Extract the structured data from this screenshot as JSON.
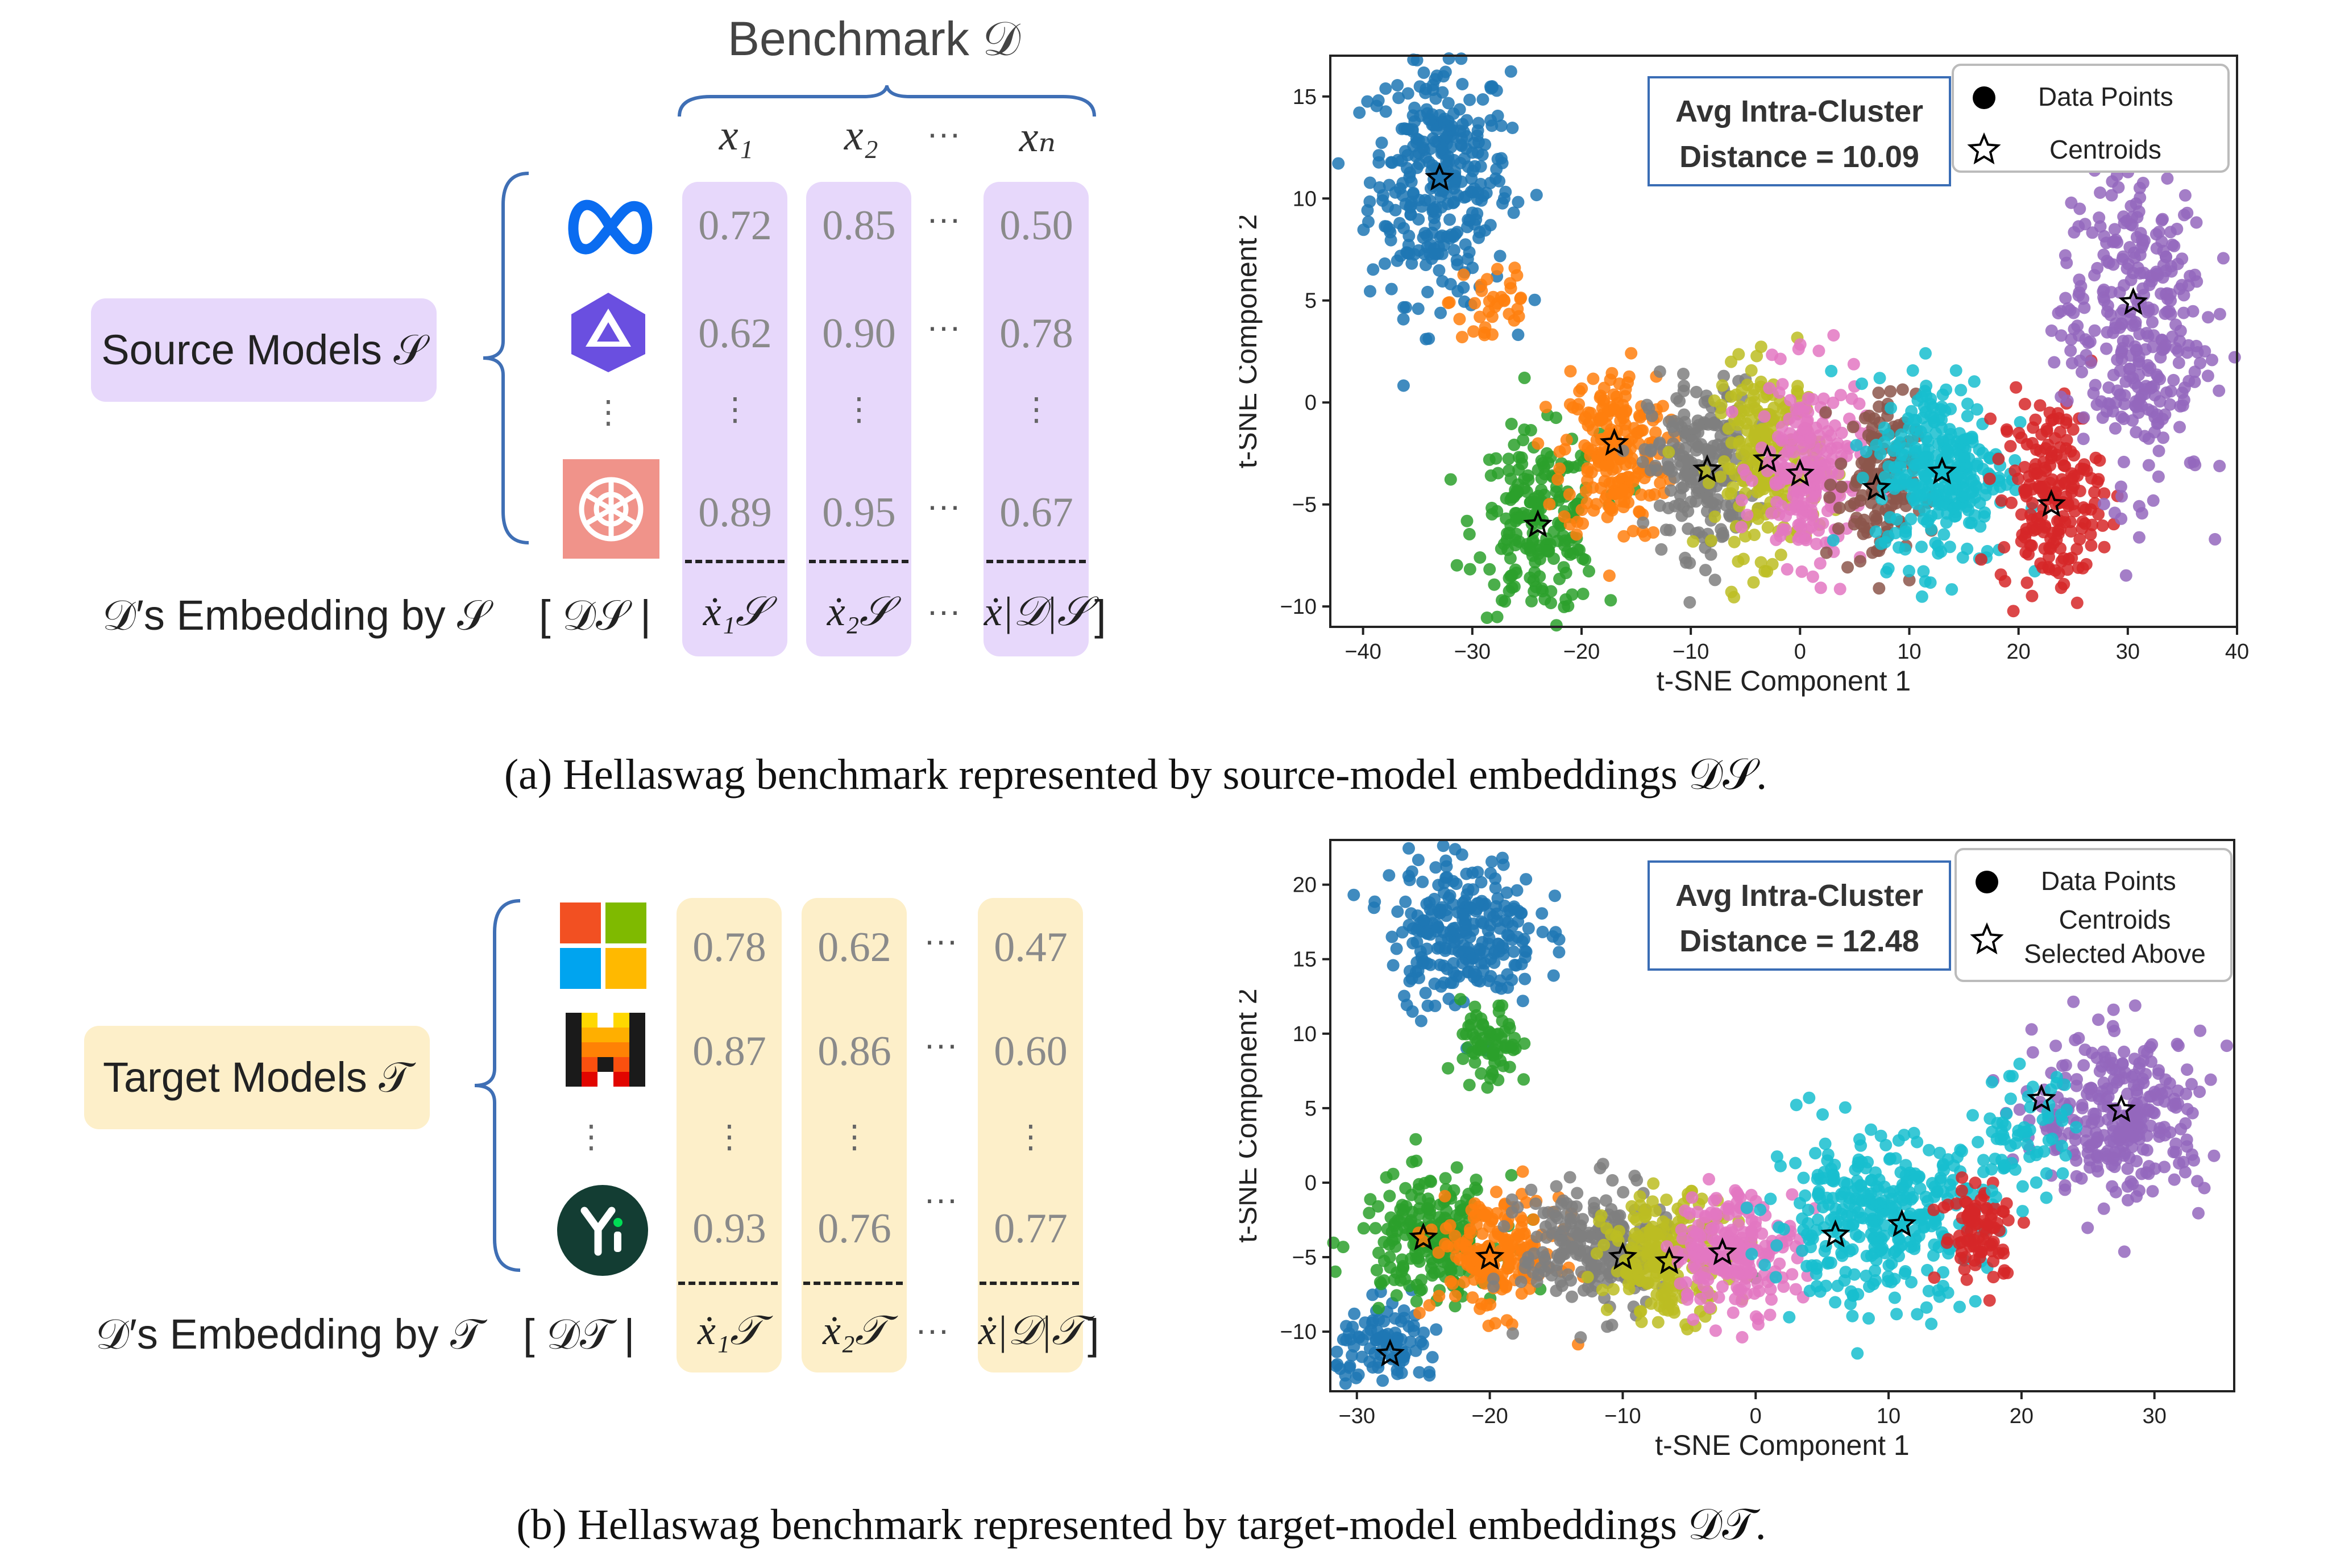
{
  "benchmark": {
    "title": "Benchmark 𝒟"
  },
  "columns": {
    "x1": "x₁",
    "x2": "x₂",
    "ellipsis": "···",
    "xN": "xₙ"
  },
  "top": {
    "label": "Source Models 𝒮",
    "rows": [
      {
        "icon": "meta-icon",
        "values": [
          "0.72",
          "0.85",
          "0.50"
        ]
      },
      {
        "icon": "qwen-icon",
        "values": [
          "0.62",
          "0.90",
          "0.78"
        ]
      },
      {
        "icon": "openai-icon",
        "values": [
          "0.89",
          "0.95",
          "0.67"
        ]
      }
    ],
    "embedding_label": "𝒟′s Embedding by 𝒮",
    "embedding_set": "[  𝒟𝒮  |",
    "embedding_cols": [
      "ẋ₁𝒮",
      "ẋ₂𝒮",
      "ẋ|𝒟|𝒮"
    ],
    "closing": "]",
    "caption": "(a) Hellaswag benchmark represented by source-model embeddings 𝒟𝒮."
  },
  "bottom": {
    "label": "Target Models 𝒯",
    "rows": [
      {
        "icon": "microsoft-icon",
        "values": [
          "0.78",
          "0.62",
          "0.47"
        ]
      },
      {
        "icon": "mistral-icon",
        "values": [
          "0.87",
          "0.86",
          "0.60"
        ]
      },
      {
        "icon": "yi-icon",
        "values": [
          "0.93",
          "0.76",
          "0.77"
        ]
      }
    ],
    "embedding_label": "𝒟′s Embedding by 𝒯",
    "embedding_set": "[  𝒟𝒯  |",
    "embedding_cols": [
      "ẋ₁𝒯",
      "ẋ₂𝒯",
      "ẋ|𝒟|𝒯"
    ],
    "closing": "]",
    "caption": "(b) Hellaswag benchmark represented by target-model embeddings 𝒟𝒯."
  },
  "chart_data": [
    {
      "type": "scatter",
      "xlabel": "t-SNE Component 1",
      "ylabel": "t-SNE Component 2",
      "xlim": [
        -43,
        40
      ],
      "ylim": [
        -11,
        17
      ],
      "xticks": [
        -40,
        -30,
        -20,
        -10,
        0,
        10,
        20,
        30,
        40
      ],
      "yticks": [
        -10,
        -5,
        0,
        5,
        10,
        15
      ],
      "annotation": [
        "Avg Intra-Cluster",
        "Distance = 10.09"
      ],
      "legend": [
        "Data Points",
        "Centroids"
      ],
      "legend_position": "top-right",
      "centroids": [
        {
          "x": -33,
          "y": 11,
          "color": "#1f77b4"
        },
        {
          "x": -24,
          "y": -6,
          "color": "#2ca02c"
        },
        {
          "x": -17,
          "y": -2,
          "color": "#ff7f0e"
        },
        {
          "x": -8.5,
          "y": -3.3,
          "color": "#7f7f7f"
        },
        {
          "x": -3,
          "y": -2.8,
          "color": "#bcbd22"
        },
        {
          "x": 0,
          "y": -3.5,
          "color": "#e377c2"
        },
        {
          "x": 7,
          "y": -4.2,
          "color": "#8c564b"
        },
        {
          "x": 13,
          "y": -3.4,
          "color": "#17becf"
        },
        {
          "x": 23,
          "y": -5,
          "color": "#d62728"
        },
        {
          "x": 30.5,
          "y": 4.9,
          "color": "#9467bd"
        }
      ]
    },
    {
      "type": "scatter",
      "xlabel": "t-SNE Component 1",
      "ylabel": "t-SNE Component 2",
      "xlim": [
        -32,
        36
      ],
      "ylim": [
        -14,
        23
      ],
      "xticks": [
        -30,
        -20,
        -10,
        0,
        10,
        20,
        30
      ],
      "yticks": [
        -10,
        -5,
        0,
        5,
        10,
        15,
        20
      ],
      "annotation": [
        "Avg Intra-Cluster",
        "Distance = 12.48"
      ],
      "legend": [
        "Data Points",
        "Centroids",
        "Selected Above"
      ],
      "legend_position": "top-right",
      "centroids": [
        {
          "x": -27.5,
          "y": -11.5,
          "color": "#1f77b4"
        },
        {
          "x": -25,
          "y": -3.7,
          "color": "#2ca02c"
        },
        {
          "x": -20,
          "y": -5,
          "color": "#ff7f0e"
        },
        {
          "x": -10,
          "y": -5,
          "color": "#7f7f7f"
        },
        {
          "x": -6.5,
          "y": -5.3,
          "color": "#bcbd22"
        },
        {
          "x": -2.5,
          "y": -4.7,
          "color": "#e377c2"
        },
        {
          "x": 6,
          "y": -3.5,
          "color": "#17becf"
        },
        {
          "x": 11,
          "y": -2.8,
          "color": "#17becf"
        },
        {
          "x": 21.5,
          "y": 5.6,
          "color": "#d62728"
        },
        {
          "x": 27.5,
          "y": 4.9,
          "color": "#9467bd"
        }
      ]
    }
  ]
}
